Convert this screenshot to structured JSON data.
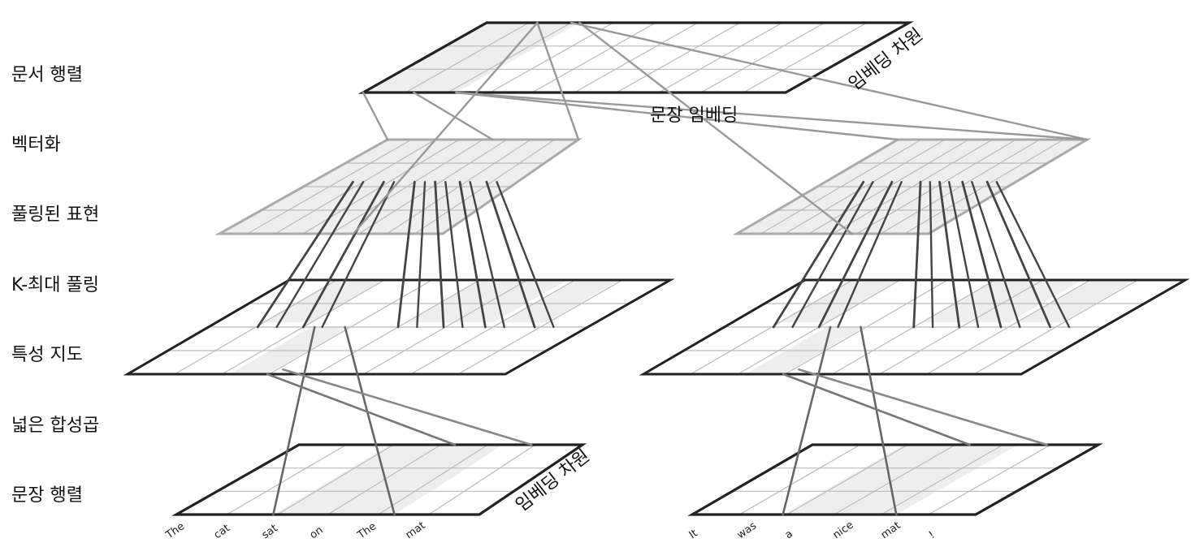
{
  "layers": [
    "문서 행렬",
    "벡터화",
    "풀링된 표현",
    "K-최대 풀링",
    "특성 지도",
    "넓은 합성곱",
    "문장 행렬"
  ],
  "axis_labels": {
    "document_embedding_dim": "임베딩 차원",
    "sentence_embedding": "문장 임베딩",
    "sentence_embedding_dim": "임베딩 차원"
  },
  "sentences": {
    "left": [
      "The",
      "cat",
      "sat",
      "on",
      "The",
      "mat"
    ],
    "right": [
      "It",
      "was",
      "a",
      "nice",
      "mat",
      "!"
    ]
  },
  "colors": {
    "frame_dark": "#222222",
    "frame_pooled": "#aaaaaa",
    "grid": "#bbbbbb",
    "shade": "#eeeeee",
    "connector": "#444444",
    "connector_light": "#999999"
  }
}
